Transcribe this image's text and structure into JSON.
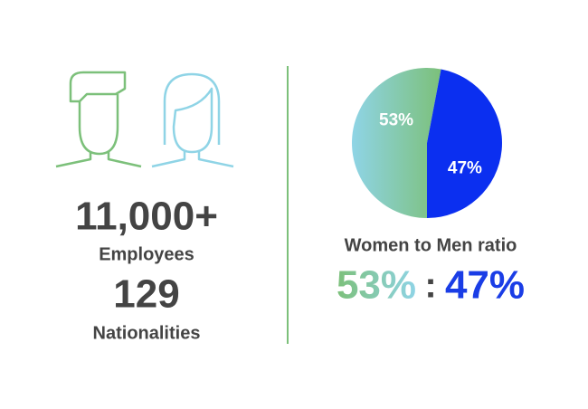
{
  "stats": [
    {
      "value": "11,000+",
      "label": "Employees"
    },
    {
      "value": "129",
      "label": "Nationalities"
    }
  ],
  "chart_data": {
    "type": "pie",
    "title": "Women to Men ratio",
    "values": [
      53,
      47
    ],
    "value_labels": [
      "53%",
      "47%"
    ],
    "colors": [
      "#7cc07a",
      "#0b2ff0"
    ],
    "separator": ":"
  }
}
